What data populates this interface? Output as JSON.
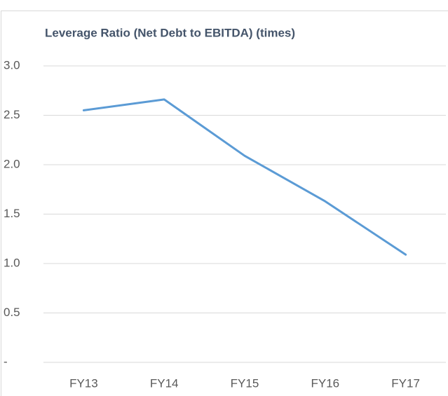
{
  "chart_data": {
    "type": "line",
    "title": "Leverage Ratio (Net Debt to EBITDA) (times)",
    "categories": [
      "FY13",
      "FY14",
      "FY15",
      "FY16",
      "FY17"
    ],
    "series": [
      {
        "color": "#5b9bd5",
        "values": [
          2.55,
          2.66,
          2.09,
          1.63,
          1.09
        ]
      }
    ],
    "ylim": [
      0,
      3
    ],
    "yticks": [
      {
        "value": 0,
        "label": "-"
      },
      0.5,
      {
        "value": 1,
        "label": "1.0"
      },
      1.5,
      {
        "value": 2,
        "label": "2.0"
      },
      2.5,
      {
        "value": 3,
        "label": "3.0"
      }
    ],
    "grid": true
  }
}
